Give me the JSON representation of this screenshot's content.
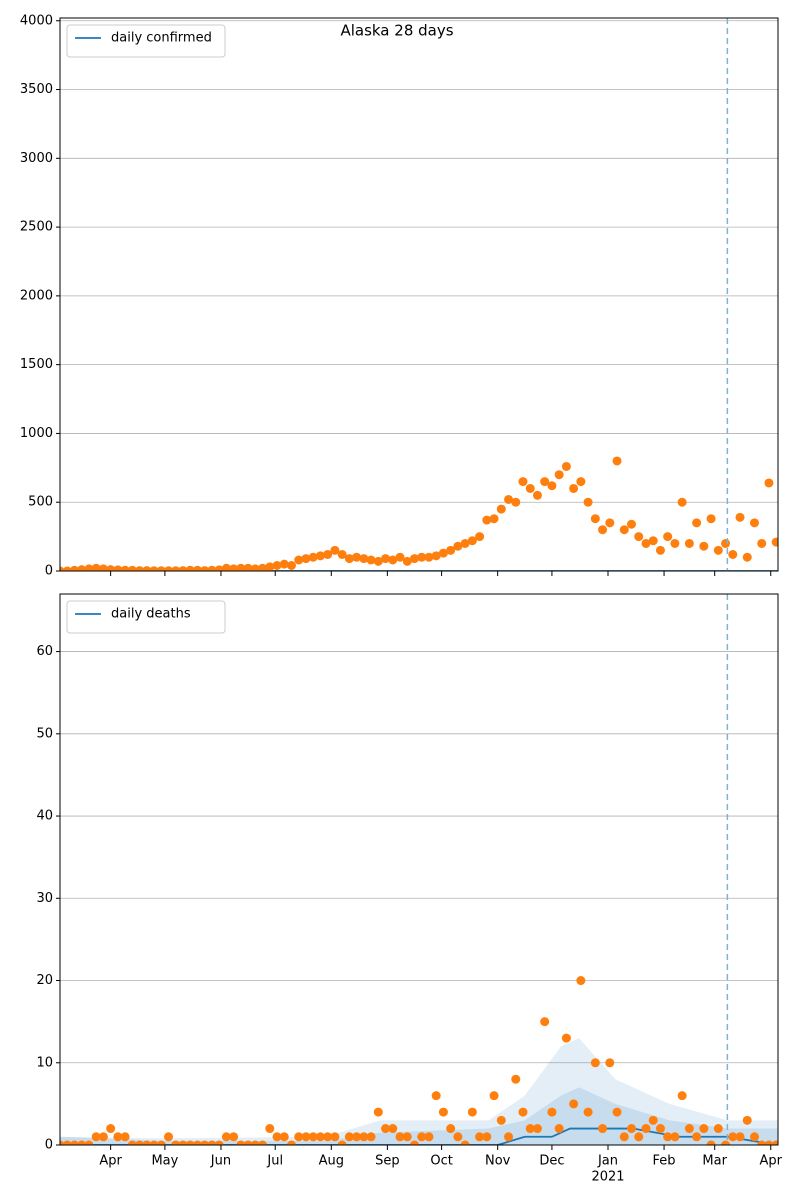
{
  "chart_data": [
    {
      "type": "line",
      "title": "Alaska 28 days",
      "xlim": [
        3,
        400
      ],
      "xticks": [
        31,
        61,
        92,
        122,
        153,
        184,
        214,
        245,
        275,
        306,
        337,
        365,
        396
      ],
      "xticklabels": false,
      "ylim": [
        0,
        4020
      ],
      "yticks": [
        0,
        500,
        1000,
        1500,
        2000,
        2500,
        3000,
        3500,
        4000
      ],
      "grid": true,
      "legend": "upper left",
      "vline": 372,
      "vline_color": "#7fb3d5",
      "series": [
        {
          "name": "daily confirmed",
          "kind": "line",
          "color": "#1f77b4",
          "x": [
            3,
            400
          ],
          "values": [
            0,
            0
          ]
        },
        {
          "kind": "scatter",
          "color": "#ff7f0e",
          "x": [
            3,
            7,
            11,
            15,
            19,
            23,
            27,
            31,
            35,
            39,
            43,
            47,
            51,
            55,
            59,
            63,
            67,
            71,
            75,
            79,
            83,
            87,
            91,
            95,
            99,
            103,
            107,
            111,
            115,
            119,
            123,
            127,
            131,
            135,
            139,
            143,
            147,
            151,
            155,
            159,
            163,
            167,
            171,
            175,
            179,
            183,
            187,
            191,
            195,
            199,
            203,
            207,
            211,
            215,
            219,
            223,
            227,
            231,
            235,
            239,
            243,
            247,
            251,
            255,
            259,
            263,
            267,
            271,
            275,
            279,
            283,
            287,
            291,
            295,
            299,
            303,
            307,
            311,
            315,
            319,
            323,
            327,
            331,
            335,
            339,
            343,
            347,
            351,
            355,
            359,
            363,
            367,
            371,
            375,
            379,
            383,
            387,
            391,
            395,
            399
          ],
          "values": [
            0,
            0,
            5,
            10,
            15,
            20,
            15,
            10,
            8,
            5,
            5,
            3,
            3,
            2,
            2,
            2,
            2,
            3,
            5,
            5,
            3,
            5,
            8,
            20,
            15,
            20,
            20,
            15,
            20,
            30,
            40,
            50,
            40,
            80,
            90,
            100,
            110,
            120,
            150,
            120,
            90,
            100,
            90,
            80,
            70,
            90,
            80,
            100,
            70,
            90,
            100,
            100,
            110,
            130,
            150,
            180,
            200,
            220,
            250,
            370,
            380,
            450,
            520,
            500,
            650,
            600,
            550,
            650,
            620,
            700,
            760,
            600,
            650,
            500,
            380,
            300,
            350,
            800,
            300,
            340,
            250,
            200,
            220,
            150,
            250,
            200,
            500,
            200,
            350,
            180,
            380,
            150,
            200,
            120,
            390,
            100,
            350,
            200,
            640,
            210
          ]
        }
      ]
    },
    {
      "type": "line",
      "xlim": [
        3,
        400
      ],
      "xticks": [
        {
          "value": 31,
          "label": "Apr"
        },
        {
          "value": 61,
          "label": "May"
        },
        {
          "value": 92,
          "label": "Jun"
        },
        {
          "value": 122,
          "label": "Jul"
        },
        {
          "value": 153,
          "label": "Aug"
        },
        {
          "value": 184,
          "label": "Sep"
        },
        {
          "value": 214,
          "label": "Oct"
        },
        {
          "value": 245,
          "label": "Nov"
        },
        {
          "value": 275,
          "label": "Dec"
        },
        {
          "value": 306,
          "label": "Jan",
          "sublabel": "2021"
        },
        {
          "value": 337,
          "label": "Feb"
        },
        {
          "value": 365,
          "label": "Mar"
        },
        {
          "value": 396,
          "label": "Apr"
        }
      ],
      "xticklabels": true,
      "ylim": [
        0,
        67
      ],
      "yticks": [
        0,
        10,
        20,
        30,
        40,
        50,
        60
      ],
      "grid": true,
      "legend": "upper left",
      "vline": 372,
      "vline_color": "#7fb3d5",
      "bands": [
        {
          "color": "#1f77b4",
          "opacity": 0.12,
          "x": [
            3,
            60,
            150,
            180,
            240,
            260,
            280,
            290,
            310,
            340,
            372,
            400
          ],
          "lower": [
            0,
            0,
            0,
            0,
            0,
            0,
            0,
            0,
            0,
            0,
            0,
            0
          ],
          "upper": [
            1,
            0.8,
            1,
            3,
            3,
            6,
            12,
            13,
            8,
            5,
            3,
            3
          ]
        },
        {
          "color": "#1f77b4",
          "opacity": 0.15,
          "x": [
            3,
            60,
            150,
            180,
            240,
            260,
            280,
            290,
            310,
            340,
            372,
            400
          ],
          "lower": [
            0,
            0,
            0,
            0,
            0,
            0,
            0,
            0,
            0,
            0,
            0,
            0
          ],
          "upper": [
            1,
            0.5,
            0.5,
            1.5,
            2,
            3,
            6,
            7,
            5,
            3,
            2,
            2
          ]
        }
      ],
      "series": [
        {
          "name": "daily deaths",
          "kind": "line",
          "color": "#1f77b4",
          "x": [
            3,
            245,
            260,
            275,
            285,
            300,
            320,
            345,
            372,
            400
          ],
          "values": [
            0,
            0,
            1,
            1,
            2,
            2,
            2,
            1,
            1,
            0
          ]
        },
        {
          "kind": "scatter",
          "color": "#ff7f0e",
          "x": [
            3,
            7,
            11,
            15,
            19,
            23,
            27,
            31,
            35,
            39,
            43,
            47,
            51,
            55,
            59,
            63,
            67,
            71,
            75,
            79,
            83,
            87,
            91,
            95,
            99,
            103,
            107,
            111,
            115,
            119,
            123,
            127,
            131,
            135,
            139,
            143,
            147,
            151,
            155,
            159,
            163,
            167,
            171,
            175,
            179,
            183,
            187,
            191,
            195,
            199,
            203,
            207,
            211,
            215,
            219,
            223,
            227,
            231,
            235,
            239,
            243,
            247,
            251,
            255,
            259,
            263,
            267,
            271,
            275,
            279,
            283,
            287,
            291,
            295,
            299,
            303,
            307,
            311,
            315,
            319,
            323,
            327,
            331,
            335,
            339,
            343,
            347,
            351,
            355,
            359,
            363,
            367,
            371,
            375,
            379,
            383,
            387,
            391,
            395,
            399
          ],
          "values": [
            0,
            0,
            0,
            0,
            0,
            1,
            1,
            2,
            1,
            1,
            0,
            0,
            0,
            0,
            0,
            1,
            0,
            0,
            0,
            0,
            0,
            0,
            0,
            1,
            1,
            0,
            0,
            0,
            0,
            2,
            1,
            1,
            0,
            1,
            1,
            1,
            1,
            1,
            1,
            0,
            1,
            1,
            1,
            1,
            4,
            2,
            2,
            1,
            1,
            0,
            1,
            1,
            6,
            4,
            2,
            1,
            0,
            4,
            1,
            1,
            6,
            3,
            1,
            8,
            4,
            2,
            2,
            15,
            4,
            2,
            13,
            5,
            20,
            4,
            10,
            2,
            10,
            4,
            1,
            2,
            1,
            2,
            3,
            2,
            1,
            1,
            6,
            2,
            1,
            2,
            0,
            2,
            0,
            1,
            1,
            3,
            1,
            0,
            0,
            0
          ]
        }
      ]
    }
  ]
}
